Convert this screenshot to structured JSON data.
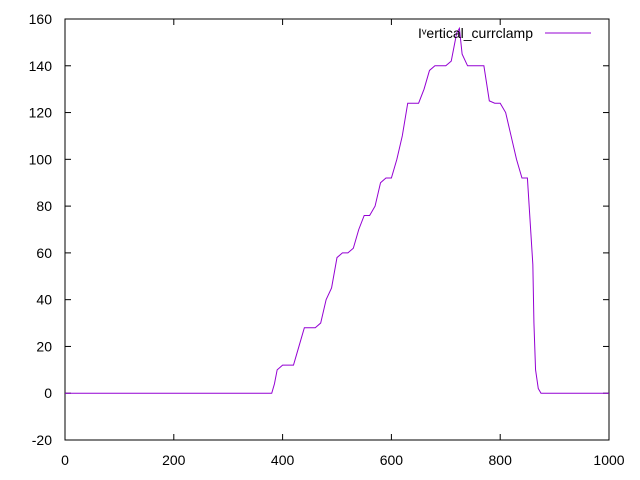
{
  "chart_data": {
    "type": "line",
    "title": "",
    "xlabel": "",
    "ylabel": "",
    "xlim": [
      0,
      1000
    ],
    "ylim": [
      -20,
      160
    ],
    "xticks": [
      0,
      200,
      400,
      600,
      800,
      1000
    ],
    "yticks": [
      -20,
      0,
      20,
      40,
      60,
      80,
      100,
      120,
      140,
      160
    ],
    "grid": false,
    "legend_position": "top-right",
    "series": [
      {
        "name": "Iᵛertical_currclamp",
        "color": "#9400d3",
        "x": [
          0,
          100,
          200,
          300,
          380,
          385,
          390,
          400,
          420,
          430,
          440,
          450,
          460,
          470,
          480,
          490,
          500,
          510,
          520,
          530,
          540,
          550,
          560,
          570,
          580,
          590,
          600,
          610,
          620,
          630,
          640,
          650,
          660,
          670,
          680,
          690,
          700,
          710,
          720,
          725,
          730,
          740,
          750,
          760,
          770,
          780,
          790,
          800,
          810,
          820,
          830,
          840,
          850,
          860,
          862,
          865,
          870,
          875,
          880,
          900,
          1000
        ],
        "y": [
          0,
          0,
          0,
          0,
          0,
          4,
          10,
          12,
          12,
          20,
          28,
          28,
          28,
          30,
          40,
          45,
          58,
          60,
          60,
          62,
          70,
          76,
          76,
          80,
          90,
          92,
          92,
          100,
          110,
          124,
          124,
          124,
          130,
          138,
          140,
          140,
          140,
          142,
          154,
          156,
          145,
          140,
          140,
          140,
          140,
          125,
          124,
          124,
          120,
          110,
          100,
          92,
          92,
          55,
          30,
          10,
          2,
          0,
          0,
          0,
          0
        ]
      }
    ]
  }
}
